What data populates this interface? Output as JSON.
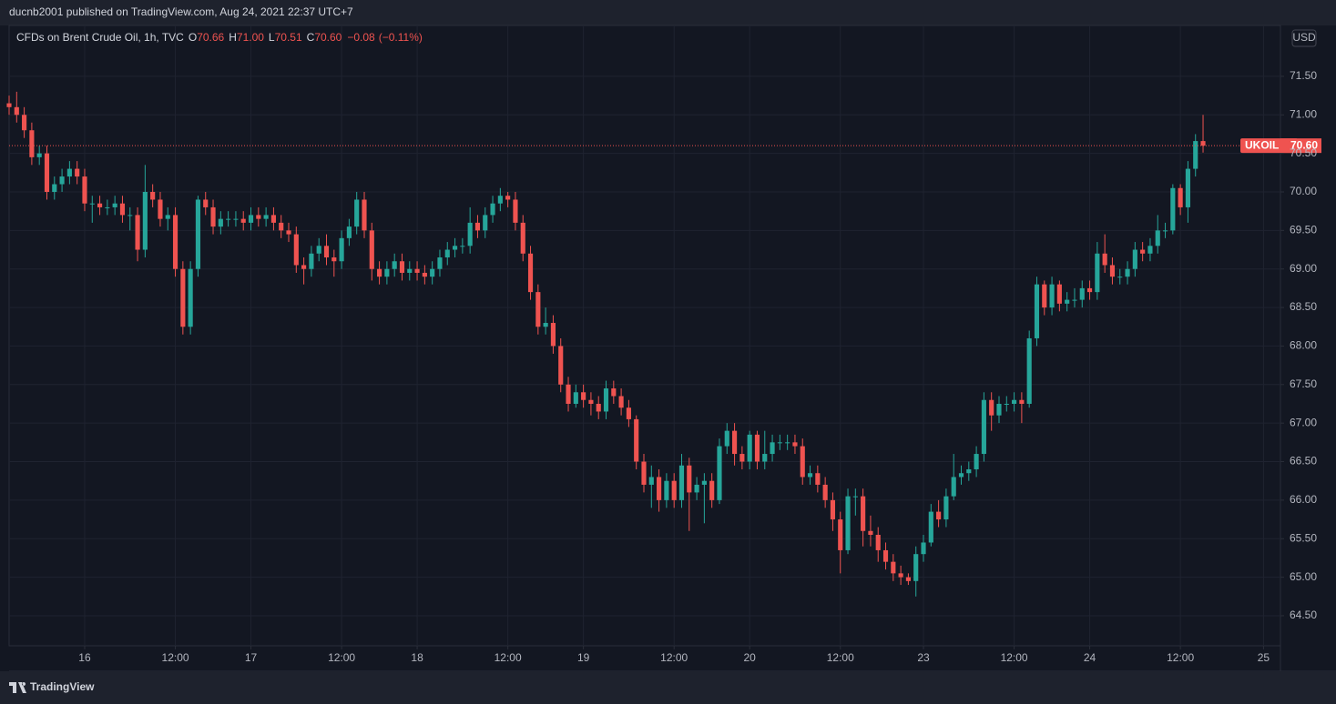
{
  "header": {
    "text": "ducnb2001 published on TradingView.com, Aug 24, 2021 22:37 UTC+7"
  },
  "footer": {
    "brand": "TradingView"
  },
  "chart_data": {
    "type": "candlestick",
    "title": "CFDs on Brent Crude Oil, 1h, TVC",
    "ohlc_legend": [
      {
        "key": "O",
        "value": 70.66,
        "label": "70.66"
      },
      {
        "key": "H",
        "value": 71.0,
        "label": "71.00"
      },
      {
        "key": "L",
        "value": 70.51,
        "label": "70.51"
      },
      {
        "key": "C",
        "value": 70.6,
        "label": "70.60"
      }
    ],
    "change": {
      "value": -0.08,
      "label": "−0.08"
    },
    "change_pct": {
      "value": -0.11,
      "label": "(−0.11%)"
    },
    "currency": "USD",
    "last_price": {
      "symbol": "UKOIL",
      "value": 70.6,
      "label": "70.60"
    },
    "up_color": "#26a69a",
    "down_color": "#ef5350",
    "grid": true,
    "xlim": [
      0,
      168
    ],
    "ylim": [
      64.11,
      72.16
    ],
    "xticks": [
      {
        "value": 10,
        "label": "16"
      },
      {
        "value": 22,
        "label": "12:00"
      },
      {
        "value": 32,
        "label": "17"
      },
      {
        "value": 44,
        "label": "12:00"
      },
      {
        "value": 54,
        "label": "18"
      },
      {
        "value": 66,
        "label": "12:00"
      },
      {
        "value": 76,
        "label": "19"
      },
      {
        "value": 88,
        "label": "12:00"
      },
      {
        "value": 98,
        "label": "20"
      },
      {
        "value": 110,
        "label": "12:00"
      },
      {
        "value": 121,
        "label": "23"
      },
      {
        "value": 133,
        "label": "12:00"
      },
      {
        "value": 143,
        "label": "24"
      },
      {
        "value": 155,
        "label": "12:00"
      },
      {
        "value": 166,
        "label": "25"
      }
    ],
    "yticks": [
      {
        "value": 64.5,
        "label": "64.50"
      },
      {
        "value": 65,
        "label": "65.00"
      },
      {
        "value": 65.5,
        "label": "65.50"
      },
      {
        "value": 66,
        "label": "66.00"
      },
      {
        "value": 66.5,
        "label": "66.50"
      },
      {
        "value": 67,
        "label": "67.00"
      },
      {
        "value": 67.5,
        "label": "67.50"
      },
      {
        "value": 68,
        "label": "68.00"
      },
      {
        "value": 68.5,
        "label": "68.50"
      },
      {
        "value": 69,
        "label": "69.00"
      },
      {
        "value": 69.5,
        "label": "69.50"
      },
      {
        "value": 70,
        "label": "70.00"
      },
      {
        "value": 70.5,
        "label": "70.50"
      },
      {
        "value": 71,
        "label": "71.00"
      },
      {
        "value": 71.5,
        "label": "71.50"
      }
    ],
    "open": [
      71.15,
      71.1,
      71.0,
      70.8,
      70.45,
      70.5,
      70.0,
      70.1,
      70.2,
      70.3,
      70.2,
      69.85,
      69.85,
      69.8,
      69.8,
      69.85,
      69.7,
      69.7,
      69.25,
      70.0,
      69.9,
      69.65,
      69.7,
      69.0,
      68.25,
      69.0,
      69.9,
      69.8,
      69.55,
      69.65,
      69.65,
      69.65,
      69.6,
      69.7,
      69.65,
      69.7,
      69.6,
      69.5,
      69.45,
      69.05,
      69.0,
      69.2,
      69.3,
      69.15,
      69.1,
      69.4,
      69.55,
      69.9,
      69.5,
      69.0,
      68.9,
      69.0,
      69.1,
      68.95,
      69.0,
      68.95,
      68.9,
      69.0,
      69.15,
      69.25,
      69.3,
      69.3,
      69.6,
      69.5,
      69.7,
      69.85,
      69.95,
      69.9,
      69.6,
      69.2,
      68.7,
      68.25,
      68.3,
      68.0,
      67.5,
      67.25,
      67.4,
      67.3,
      67.25,
      67.15,
      67.45,
      67.35,
      67.2,
      67.05,
      66.5,
      66.2,
      66.3,
      66.0,
      66.25,
      66.0,
      66.45,
      66.1,
      66.2,
      66.25,
      66.0,
      66.7,
      66.9,
      66.6,
      66.5,
      66.85,
      66.5,
      66.6,
      66.75,
      66.75,
      66.75,
      66.7,
      66.3,
      66.35,
      66.2,
      66.0,
      65.75,
      65.35,
      66.05,
      66.05,
      65.6,
      65.55,
      65.35,
      65.2,
      65.05,
      65.0,
      64.95,
      65.3,
      65.45,
      65.85,
      65.75,
      66.05,
      66.3,
      66.35,
      66.4,
      66.6,
      67.3,
      67.1,
      67.25,
      67.25,
      67.3,
      67.25,
      68.1,
      68.8,
      68.5,
      68.8,
      68.55,
      68.6,
      68.6,
      68.75,
      68.7,
      69.2,
      69.05,
      68.9,
      68.9,
      69.0,
      69.25,
      69.2,
      69.3,
      69.5,
      69.5,
      70.05,
      69.8,
      70.3,
      70.66
    ],
    "high": [
      71.25,
      71.3,
      71.1,
      70.9,
      70.6,
      70.6,
      70.2,
      70.3,
      70.4,
      70.4,
      70.3,
      69.95,
      69.95,
      69.9,
      69.95,
      69.95,
      69.8,
      69.8,
      70.35,
      70.1,
      70.0,
      69.8,
      69.8,
      69.1,
      69.1,
      69.95,
      70.0,
      69.9,
      69.75,
      69.75,
      69.75,
      69.75,
      69.8,
      69.8,
      69.8,
      69.8,
      69.7,
      69.6,
      69.55,
      69.15,
      69.3,
      69.4,
      69.45,
      69.25,
      69.5,
      69.65,
      70.0,
      70.0,
      69.6,
      69.1,
      69.1,
      69.2,
      69.2,
      69.1,
      69.1,
      69.05,
      69.1,
      69.25,
      69.35,
      69.4,
      69.4,
      69.8,
      69.7,
      69.8,
      69.95,
      70.05,
      70.0,
      70.0,
      69.7,
      69.3,
      68.8,
      68.5,
      68.4,
      68.1,
      67.6,
      67.5,
      67.5,
      67.4,
      67.35,
      67.55,
      67.55,
      67.45,
      67.3,
      67.1,
      66.6,
      66.45,
      66.4,
      66.35,
      66.35,
      66.6,
      66.55,
      66.3,
      66.35,
      66.35,
      66.8,
      67.0,
      67.0,
      66.7,
      66.9,
      66.9,
      66.9,
      66.85,
      66.85,
      66.85,
      66.85,
      66.8,
      66.45,
      66.45,
      66.3,
      66.1,
      65.85,
      66.15,
      66.15,
      66.15,
      65.8,
      65.65,
      65.45,
      65.3,
      65.15,
      65.05,
      65.4,
      65.55,
      65.95,
      66.0,
      66.15,
      66.6,
      66.45,
      66.5,
      66.7,
      67.4,
      67.4,
      67.35,
      67.35,
      67.4,
      67.4,
      68.2,
      68.9,
      68.85,
      68.9,
      68.85,
      68.7,
      68.75,
      68.85,
      68.85,
      69.35,
      69.45,
      69.15,
      69.0,
      69.1,
      69.35,
      69.35,
      69.4,
      69.7,
      69.6,
      70.1,
      70.1,
      70.4,
      70.75,
      71.0
    ],
    "low": [
      71.0,
      70.9,
      70.7,
      70.35,
      70.35,
      69.9,
      69.9,
      70.0,
      70.1,
      70.1,
      69.75,
      69.6,
      69.7,
      69.7,
      69.7,
      69.6,
      69.5,
      69.1,
      69.15,
      69.8,
      69.55,
      69.5,
      68.9,
      68.15,
      68.15,
      68.9,
      69.7,
      69.45,
      69.45,
      69.55,
      69.55,
      69.5,
      69.5,
      69.55,
      69.55,
      69.5,
      69.4,
      69.35,
      68.95,
      68.8,
      68.9,
      69.1,
      69.05,
      68.9,
      69.0,
      69.3,
      69.45,
      69.4,
      68.85,
      68.8,
      68.8,
      68.9,
      68.85,
      68.85,
      68.85,
      68.8,
      68.8,
      68.9,
      69.05,
      69.15,
      69.2,
      69.2,
      69.4,
      69.4,
      69.6,
      69.75,
      69.8,
      69.5,
      69.1,
      68.6,
      68.15,
      68.15,
      67.9,
      67.4,
      67.15,
      67.2,
      67.2,
      67.1,
      67.05,
      67.05,
      67.25,
      67.1,
      66.95,
      66.4,
      66.1,
      65.9,
      65.85,
      65.9,
      65.9,
      65.9,
      65.6,
      66.0,
      65.7,
      65.9,
      65.95,
      66.6,
      66.45,
      66.4,
      66.4,
      66.4,
      66.4,
      66.5,
      66.65,
      66.65,
      66.6,
      66.2,
      66.2,
      66.1,
      65.9,
      65.6,
      65.05,
      65.3,
      65.8,
      65.4,
      65.4,
      65.2,
      65.1,
      64.95,
      64.9,
      64.9,
      64.75,
      65.2,
      65.4,
      65.65,
      65.65,
      66.0,
      66.2,
      66.25,
      66.3,
      66.5,
      66.9,
      67.0,
      67.15,
      67.15,
      67.0,
      67.2,
      68.0,
      68.4,
      68.4,
      68.45,
      68.45,
      68.5,
      68.5,
      68.6,
      68.6,
      68.95,
      68.8,
      68.8,
      68.8,
      68.9,
      69.1,
      69.1,
      69.2,
      69.4,
      69.45,
      69.7,
      69.6,
      70.2,
      70.51
    ],
    "close": [
      71.1,
      71.0,
      70.8,
      70.45,
      70.5,
      70.0,
      70.1,
      70.2,
      70.3,
      70.2,
      69.85,
      69.85,
      69.8,
      69.8,
      69.85,
      69.7,
      69.7,
      69.25,
      70.0,
      69.9,
      69.65,
      69.7,
      69.0,
      68.25,
      69.0,
      69.9,
      69.8,
      69.55,
      69.65,
      69.65,
      69.65,
      69.6,
      69.7,
      69.65,
      69.7,
      69.6,
      69.5,
      69.45,
      69.05,
      69.0,
      69.2,
      69.3,
      69.15,
      69.1,
      69.4,
      69.55,
      69.9,
      69.5,
      69.0,
      68.9,
      69.0,
      69.1,
      68.95,
      69.0,
      68.95,
      68.9,
      69.0,
      69.15,
      69.25,
      69.3,
      69.3,
      69.6,
      69.5,
      69.7,
      69.85,
      69.95,
      69.9,
      69.6,
      69.2,
      68.7,
      68.25,
      68.3,
      68.0,
      67.5,
      67.25,
      67.4,
      67.3,
      67.25,
      67.15,
      67.45,
      67.35,
      67.2,
      67.05,
      66.5,
      66.2,
      66.3,
      66.0,
      66.25,
      66.0,
      66.45,
      66.1,
      66.2,
      66.25,
      66.0,
      66.7,
      66.9,
      66.6,
      66.5,
      66.85,
      66.5,
      66.6,
      66.75,
      66.75,
      66.75,
      66.7,
      66.3,
      66.35,
      66.2,
      66.0,
      65.75,
      65.35,
      66.05,
      66.05,
      65.6,
      65.55,
      65.35,
      65.2,
      65.05,
      65.0,
      64.95,
      65.3,
      65.45,
      65.85,
      65.75,
      66.05,
      66.3,
      66.35,
      66.4,
      66.6,
      67.3,
      67.1,
      67.25,
      67.25,
      67.3,
      67.25,
      68.1,
      68.8,
      68.5,
      68.8,
      68.55,
      68.6,
      68.6,
      68.75,
      68.7,
      69.2,
      69.05,
      68.9,
      68.9,
      69.0,
      69.25,
      69.2,
      69.3,
      69.5,
      69.5,
      70.05,
      69.8,
      70.3,
      70.66,
      70.6
    ]
  }
}
